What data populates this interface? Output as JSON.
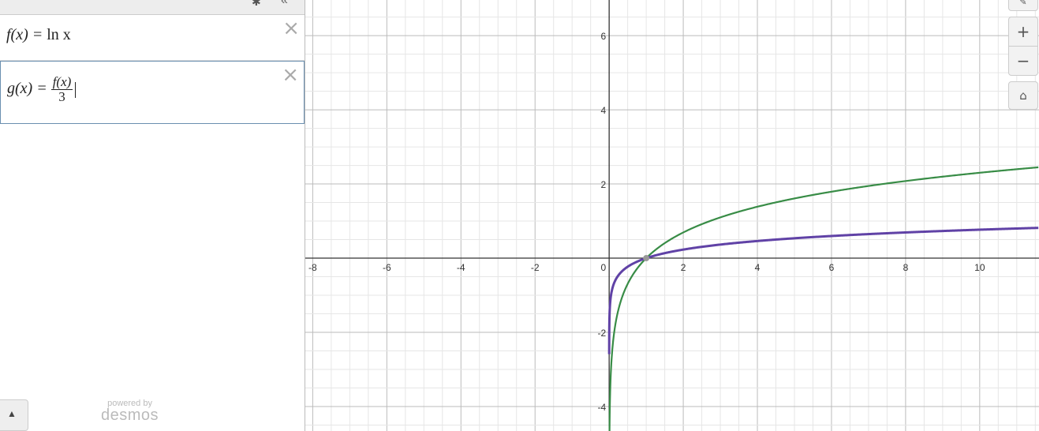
{
  "sidebar": {
    "settings_icon": "gear-icon",
    "collapse_icon": "double-chevron-left-icon",
    "expressions": [
      {
        "lhs": "f(x) = ",
        "rhs": "ln x",
        "color": "#388c46"
      },
      {
        "lhs": "g(x) = ",
        "numerator": "f(x)",
        "denominator": "3",
        "color": "#6042a6"
      }
    ],
    "delete_label": "×",
    "keypad_label": "▲",
    "powered_by": "powered by",
    "brand": "desmos"
  },
  "graph_controls": {
    "zoom_in": "+",
    "zoom_out": "−",
    "home_icon": "home-icon"
  },
  "chart_data": {
    "type": "line",
    "xlim": [
      -8.2,
      11.6
    ],
    "ylim": [
      -4.66,
      6.96
    ],
    "grid": true,
    "x_ticks": [
      "-8",
      "-6",
      "-4",
      "-2",
      "0",
      "2",
      "4",
      "6",
      "8",
      "10"
    ],
    "y_ticks": [
      "6",
      "4",
      "2",
      "-2",
      "-4"
    ],
    "series": [
      {
        "expr": "f(x) = ln x",
        "color": "#388c46"
      },
      {
        "expr": "g(x) = f(x)/3",
        "color": "#6042a6"
      }
    ],
    "points": [
      {
        "x": 1,
        "y": 0,
        "color": "#999999"
      }
    ]
  }
}
